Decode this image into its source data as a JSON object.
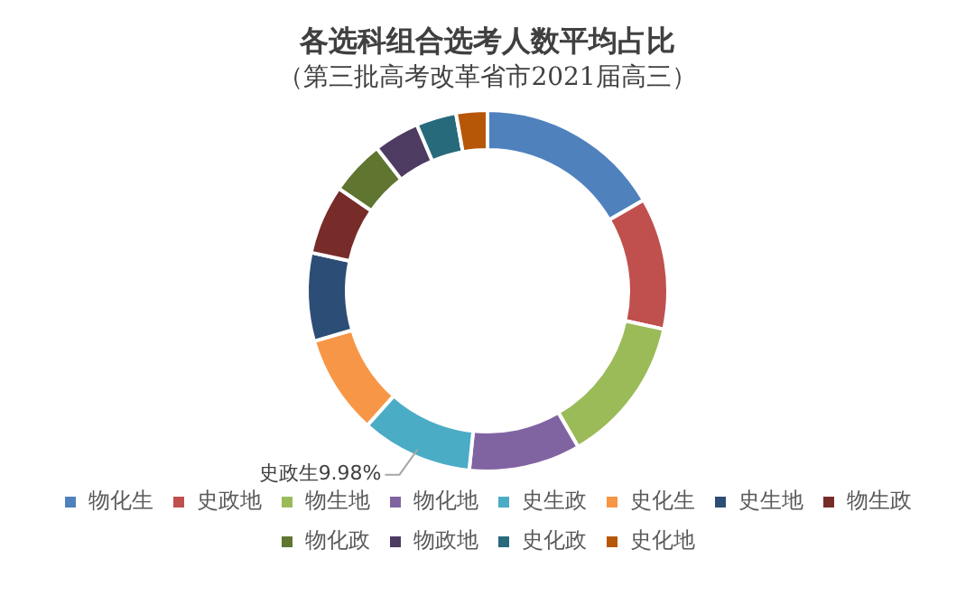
{
  "chart_data": {
    "type": "donut",
    "title": "各选科组合选考人数平均占比",
    "subtitle": "（第三批高考改革省市2021届高三）",
    "categories": [
      "物化生",
      "史政地",
      "物生地",
      "物化地",
      "史生政",
      "史化生",
      "史生地",
      "物生政",
      "物化政",
      "物政地",
      "史化政",
      "史化地"
    ],
    "values": [
      16.62,
      11.8,
      13.2,
      10,
      9.98,
      8.9,
      7.9,
      6.2,
      4.9,
      4.1,
      3.6,
      2.8
    ],
    "colors": [
      "#4f81bd",
      "#c0504d",
      "#9bbb59",
      "#8064a2",
      "#4bacc6",
      "#f79646",
      "#2c4d75",
      "#772c2a",
      "#5f7530",
      "#4d3b62",
      "#276a7c",
      "#b65708"
    ],
    "value_labels": [
      null,
      null,
      null,
      null,
      "史政生9.98%",
      null,
      null,
      null,
      null,
      null,
      null,
      null
    ],
    "legend": "bottom"
  }
}
